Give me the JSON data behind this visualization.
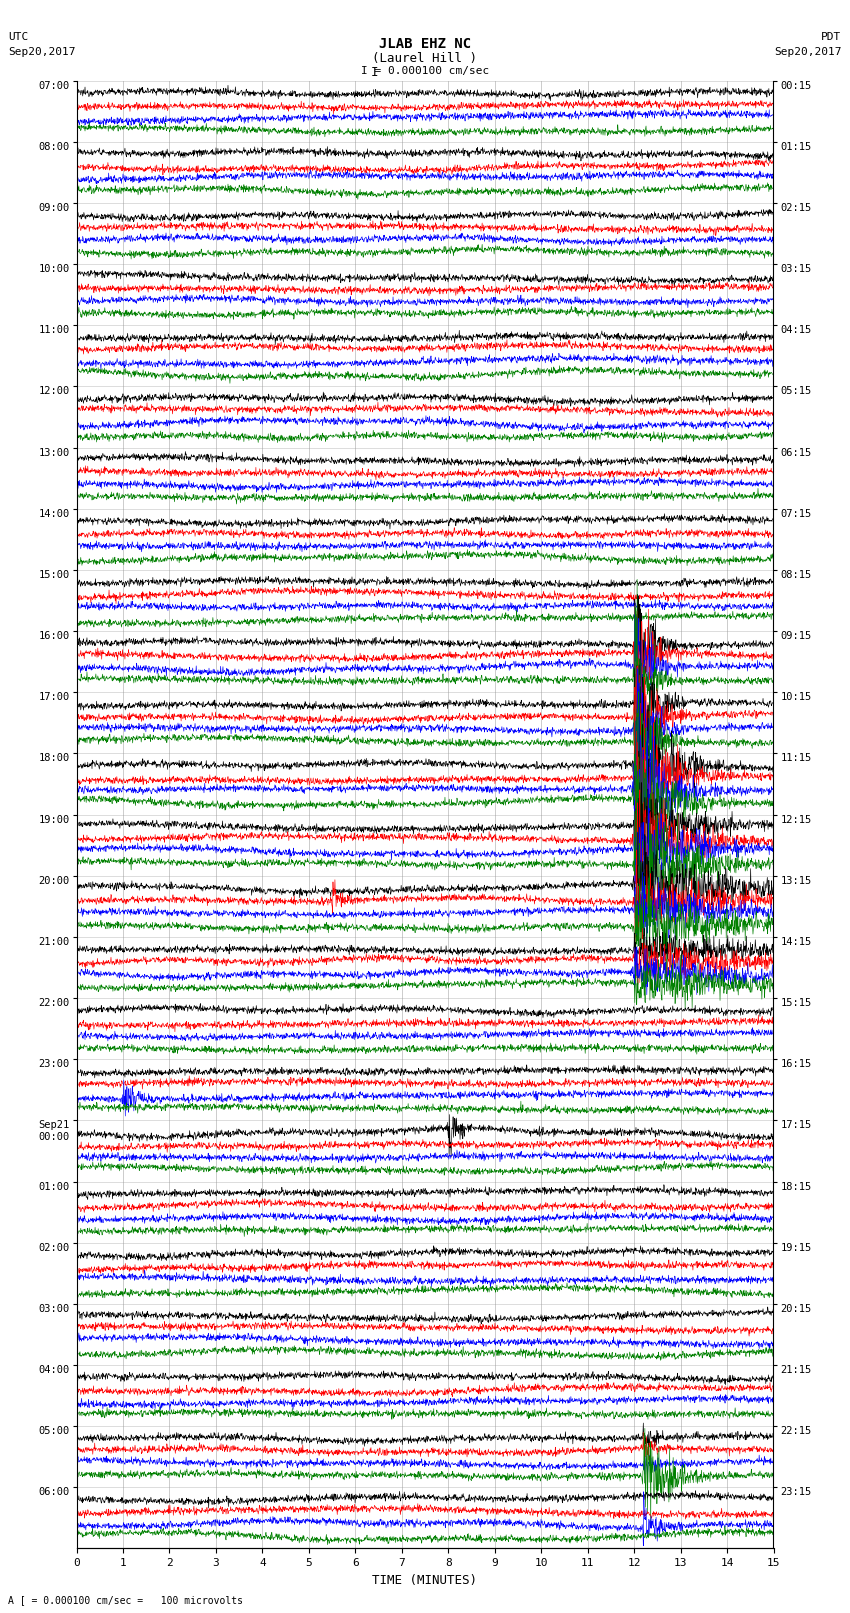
{
  "title_line1": "JLAB EHZ NC",
  "title_line2": "(Laurel Hill )",
  "scale_label": "I = 0.000100 cm/sec",
  "utc_label": "UTC",
  "utc_date": "Sep20,2017",
  "pdt_label": "PDT",
  "pdt_date": "Sep20,2017",
  "bottom_label": "A [ = 0.000100 cm/sec =   100 microvolts",
  "xlabel": "TIME (MINUTES)",
  "left_times": [
    "07:00",
    "08:00",
    "09:00",
    "10:00",
    "11:00",
    "12:00",
    "13:00",
    "14:00",
    "15:00",
    "16:00",
    "17:00",
    "18:00",
    "19:00",
    "20:00",
    "21:00",
    "22:00",
    "23:00",
    "Sep21\n00:00",
    "01:00",
    "02:00",
    "03:00",
    "04:00",
    "05:00",
    "06:00"
  ],
  "right_times": [
    "00:15",
    "01:15",
    "02:15",
    "03:15",
    "04:15",
    "05:15",
    "06:15",
    "07:15",
    "08:15",
    "09:15",
    "10:15",
    "11:15",
    "12:15",
    "13:15",
    "14:15",
    "15:15",
    "16:15",
    "17:15",
    "18:15",
    "19:15",
    "20:15",
    "21:15",
    "22:15",
    "23:15"
  ],
  "num_rows": 24,
  "traces_per_row": 4,
  "colors": [
    "black",
    "red",
    "blue",
    "green"
  ],
  "bg_color": "white",
  "grid_color": "#999999",
  "minutes_xlim": [
    0,
    15
  ],
  "xticks": [
    0,
    1,
    2,
    3,
    4,
    5,
    6,
    7,
    8,
    9,
    10,
    11,
    12,
    13,
    14,
    15
  ],
  "earthquake_row": 10,
  "earthquake_minute": 12.0,
  "earthquake2_row": 22,
  "earthquake2_minute": 12.2,
  "small_event_row_red": 13,
  "small_event_minute_red": 5.5,
  "small_event_row_blue": 16,
  "small_event_minute_blue": 1.0,
  "midnight_event_row": 17,
  "midnight_event_minute": 8.0
}
